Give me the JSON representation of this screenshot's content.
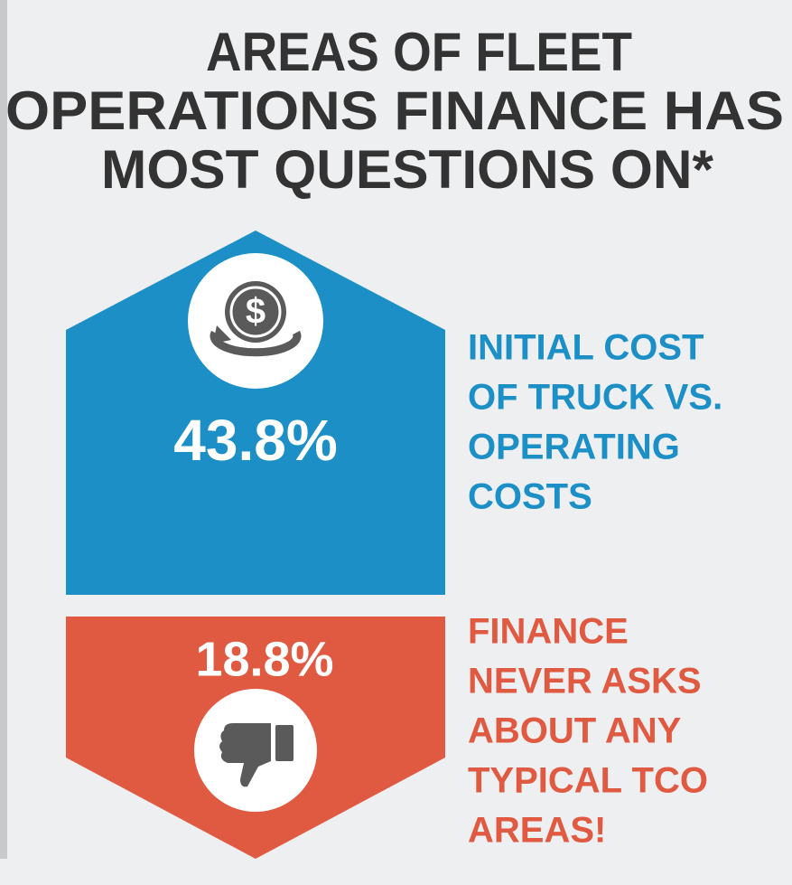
{
  "title": {
    "lines": [
      "AREAS OF FLEET",
      "OPERATIONS FINANCE HAS",
      "MOST QUESTIONS ON*"
    ]
  },
  "items": [
    {
      "value": "43.8%",
      "label_lines": [
        "INITIAL COST",
        "OF TRUCK VS.",
        "OPERATING",
        "COSTS"
      ]
    },
    {
      "value": "18.8%",
      "label_lines": [
        "FINANCE",
        "NEVER ASKS",
        "ABOUT ANY",
        "TYPICAL TCO",
        "AREAS!"
      ]
    }
  ]
}
